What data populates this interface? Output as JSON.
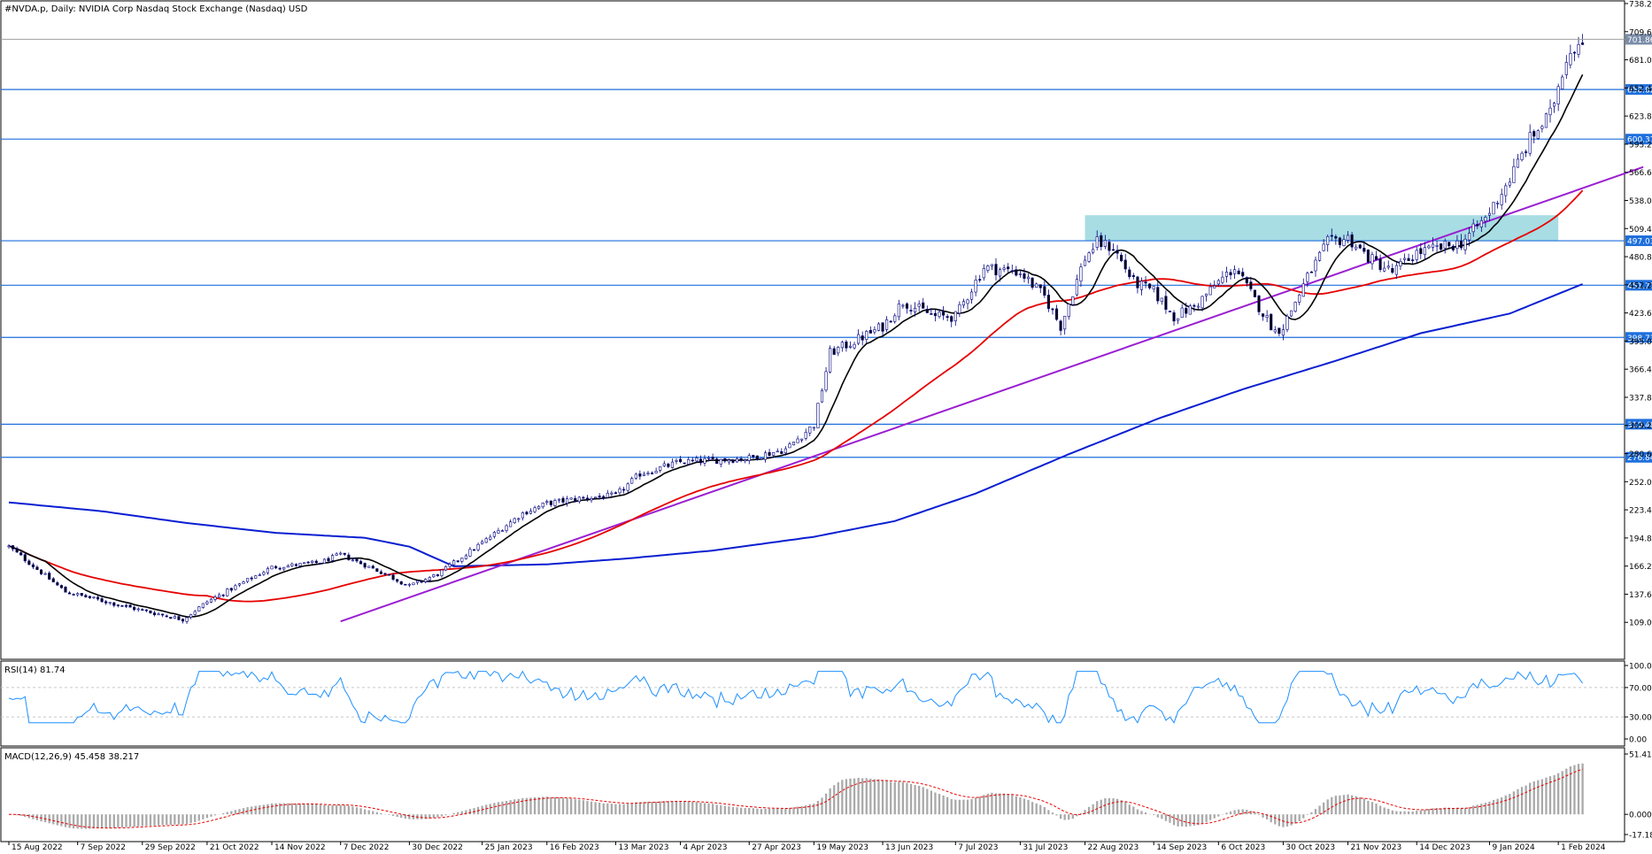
{
  "window": {
    "title": "#NVDA.p, Daily:  NVIDIA Corp Nasdaq Stock Exchange (Nasdaq) USD"
  },
  "colors": {
    "background": "#ffffff",
    "border": "#000000",
    "grid": "#c8c8c8",
    "candle_up_body": "#ffffff",
    "candle_down_body": "#000000",
    "candle_outline": "#000080",
    "sma_fast": "#000000",
    "sma_mid": "#e60000",
    "sma_slow": "#0a1fd1",
    "trendline": "#9b1fd1",
    "level_line": "#1e6fdc",
    "level_label_bg": "#1e6fdc",
    "last_price_line": "#a0a0a0",
    "last_price_label_bg": "#7a8ca8",
    "zone_fill": "#a8dde3",
    "rsi_line": "#1e90ff",
    "macd_hist": "#a9a9a9",
    "macd_signal": "#e60000"
  },
  "chart_data": [
    {
      "id": "price",
      "type": "candlestick",
      "title": "#NVDA.p, Daily:  NVIDIA Corp Nasdaq Stock Exchange (Nasdaq) USD",
      "ylim": [
        80.43,
        738.23
      ],
      "y_ticks": [
        "738.23",
        "709.63",
        "681.03",
        "652.43",
        "623.83",
        "595.23",
        "566.63",
        "538.03",
        "509.43",
        "480.83",
        "452.23",
        "423.63",
        "395.03",
        "366.43",
        "337.83",
        "309.23",
        "280.63",
        "252.03",
        "223.43",
        "194.83",
        "166.23",
        "137.63",
        "109.03"
      ],
      "x_tick_labels": [
        "15 Aug 2022",
        "7 Sep 2022",
        "29 Sep 2022",
        "21 Oct 2022",
        "14 Nov 2022",
        "7 Dec 2022",
        "30 Dec 2022",
        "25 Jan 2023",
        "16 Feb 2023",
        "13 Mar 2023",
        "4 Apr 2023",
        "27 Apr 2023",
        "19 May 2023",
        "13 Jun 2023",
        "7 Jul 2023",
        "31 Jul 2023",
        "22 Aug 2023",
        "14 Sep 2023",
        "6 Oct 2023",
        "30 Oct 2023",
        "21 Nov 2023",
        "14 Dec 2023",
        "9 Jan 2024",
        "1 Feb 2024"
      ],
      "price_anchors": [
        [
          "15 Aug 2022",
          186
        ],
        [
          "2 Sep 2022",
          140
        ],
        [
          "29 Sep 2022",
          121
        ],
        [
          "13 Oct 2022",
          112
        ],
        [
          "21 Oct 2022",
          130
        ],
        [
          "14 Nov 2022",
          165
        ],
        [
          "30 Nov 2022",
          170
        ],
        [
          "7 Dec 2022",
          178
        ],
        [
          "21 Dec 2022",
          160
        ],
        [
          "30 Dec 2022",
          146
        ],
        [
          "10 Jan 2023",
          158
        ],
        [
          "25 Jan 2023",
          190
        ],
        [
          "8 Feb 2023",
          220
        ],
        [
          "16 Feb 2023",
          230
        ],
        [
          "28 Feb 2023",
          235
        ],
        [
          "13 Mar 2023",
          238
        ],
        [
          "21 Mar 2023",
          260
        ],
        [
          "4 Apr 2023",
          272
        ],
        [
          "27 Apr 2023",
          276
        ],
        [
          "10 May 2023",
          285
        ],
        [
          "19 May 2023",
          310
        ],
        [
          "25 May 2023",
          383
        ],
        [
          "2 Jun 2023",
          395
        ],
        [
          "13 Jun 2023",
          410
        ],
        [
          "20 Jun 2023",
          435
        ],
        [
          "30 Jun 2023",
          420
        ],
        [
          "7 Jul 2023",
          420
        ],
        [
          "18 Jul 2023",
          470
        ],
        [
          "31 Jul 2023",
          465
        ],
        [
          "8 Aug 2023",
          440
        ],
        [
          "14 Aug 2023",
          410
        ],
        [
          "22 Aug 2023",
          480
        ],
        [
          "25 Aug 2023",
          495
        ],
        [
          "31 Aug 2023",
          490
        ],
        [
          "7 Sep 2023",
          455
        ],
        [
          "14 Sep 2023",
          445
        ],
        [
          "21 Sep 2023",
          420
        ],
        [
          "28 Sep 2023",
          430
        ],
        [
          "6 Oct 2023",
          455
        ],
        [
          "12 Oct 2023",
          470
        ],
        [
          "20 Oct 2023",
          430
        ],
        [
          "26 Oct 2023",
          405
        ],
        [
          "30 Oct 2023",
          410
        ],
        [
          "7 Nov 2023",
          460
        ],
        [
          "14 Nov 2023",
          495
        ],
        [
          "21 Nov 2023",
          500
        ],
        [
          "28 Nov 2023",
          480
        ],
        [
          "6 Dec 2023",
          465
        ],
        [
          "14 Dec 2023",
          485
        ],
        [
          "22 Dec 2023",
          490
        ],
        [
          "29 Dec 2023",
          495
        ],
        [
          "8 Jan 2024",
          520
        ],
        [
          "16 Jan 2024",
          560
        ],
        [
          "23 Jan 2024",
          600
        ],
        [
          "30 Jan 2024",
          625
        ],
        [
          "5 Feb 2024",
          685
        ],
        [
          "9 Feb 2024",
          705
        ]
      ],
      "horizontal_levels": [
        "650.82",
        "600.37",
        "497.03",
        "451.77",
        "398.73",
        "310.48",
        "276.84"
      ],
      "last_price_label": "701.86",
      "resistance_zone": {
        "from_date": "22 Aug 2023",
        "to_date": "1 Feb 2024",
        "low": 497.03,
        "high": 523
      },
      "trendline": {
        "from": [
          "7 Dec 2022",
          110
        ],
        "to": [
          "1 Mar 2024",
          572
        ]
      },
      "series": [
        {
          "key": "sma_fast",
          "period": 10
        },
        {
          "key": "sma_mid",
          "period": 50
        },
        {
          "key": "sma_slow",
          "period": 200
        }
      ],
      "sma_slow_anchors": [
        [
          "15 Aug 2022",
          231
        ],
        [
          "15 Sep 2022",
          222
        ],
        [
          "15 Oct 2022",
          210
        ],
        [
          "15 Nov 2022",
          200
        ],
        [
          "15 Dec 2022",
          195
        ],
        [
          "30 Dec 2022",
          186
        ],
        [
          "16 Jan 2023",
          166
        ],
        [
          "16 Feb 2023",
          168
        ],
        [
          "16 Mar 2023",
          174
        ],
        [
          "16 Apr 2023",
          182
        ],
        [
          "19 May 2023",
          196
        ],
        [
          "16 Jun 2023",
          212
        ],
        [
          "16 Jul 2023",
          240
        ],
        [
          "16 Aug 2023",
          280
        ],
        [
          "16 Sep 2023",
          316
        ],
        [
          "16 Oct 2023",
          346
        ],
        [
          "16 Nov 2023",
          375
        ],
        [
          "16 Dec 2023",
          403
        ],
        [
          "16 Jan 2024",
          423
        ],
        [
          "9 Feb 2024",
          453
        ]
      ]
    },
    {
      "id": "rsi",
      "type": "line",
      "label": "RSI(14) 81.74",
      "ylim": [
        0,
        100
      ],
      "y_ticks": [
        "100.00",
        "70.00",
        "30.00",
        "0.00"
      ],
      "levels": [
        70,
        30
      ]
    },
    {
      "id": "macd",
      "type": "bar",
      "label": "MACD(12,26,9) 45.458 38.217",
      "ylim": [
        -17.186,
        51.411
      ],
      "y_ticks": [
        "51.411",
        "0.000",
        "-17.186"
      ]
    }
  ]
}
